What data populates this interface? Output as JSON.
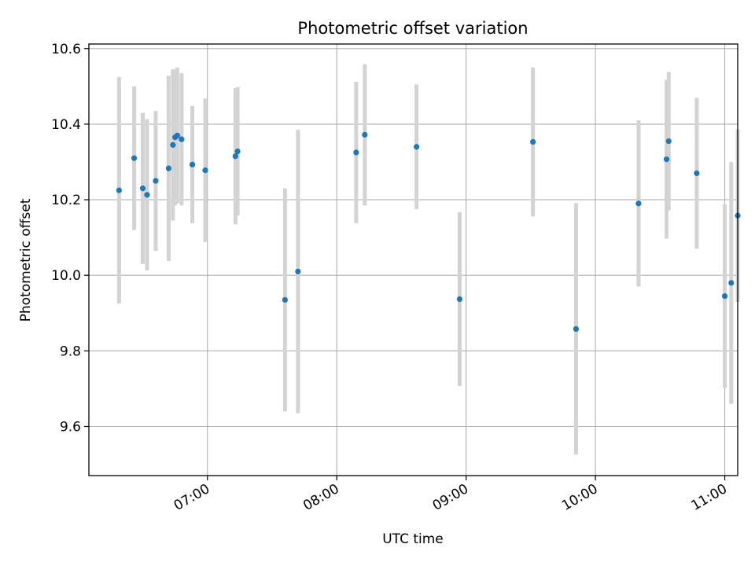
{
  "chart_data": {
    "type": "scatter",
    "title": "Photometric offset variation",
    "xlabel": "UTC time",
    "ylabel": "Photometric offset",
    "xlim": [
      "06:05",
      "11:06"
    ],
    "ylim": [
      9.47,
      10.612
    ],
    "x_ticks": [
      "07:00",
      "08:00",
      "09:00",
      "10:00",
      "11:00"
    ],
    "y_ticks": [
      9.6,
      9.8,
      10.0,
      10.2,
      10.4,
      10.6
    ],
    "grid": true,
    "colors": {
      "points": "#1f77b4",
      "errorbars": "#d3d3d3",
      "grid": "#b0b0b0"
    },
    "points": [
      {
        "x": "06:19",
        "y": 10.225,
        "err": 0.3
      },
      {
        "x": "06:26",
        "y": 10.31,
        "err": 0.19
      },
      {
        "x": "06:30",
        "y": 10.23,
        "err": 0.2
      },
      {
        "x": "06:32",
        "y": 10.213,
        "err": 0.2
      },
      {
        "x": "06:36",
        "y": 10.25,
        "err": 0.185
      },
      {
        "x": "06:42",
        "y": 10.283,
        "err": 0.245
      },
      {
        "x": "06:44",
        "y": 10.345,
        "err": 0.2
      },
      {
        "x": "06:45",
        "y": 10.365,
        "err": 0.18
      },
      {
        "x": "06:46",
        "y": 10.37,
        "err": 0.18
      },
      {
        "x": "06:48",
        "y": 10.36,
        "err": 0.175
      },
      {
        "x": "06:53",
        "y": 10.293,
        "err": 0.155
      },
      {
        "x": "06:59",
        "y": 10.278,
        "err": 0.19
      },
      {
        "x": "07:13",
        "y": 10.315,
        "err": 0.18
      },
      {
        "x": "07:14",
        "y": 10.328,
        "err": 0.17
      },
      {
        "x": "07:36",
        "y": 9.935,
        "err": 0.295
      },
      {
        "x": "07:42",
        "y": 10.01,
        "err": 0.375
      },
      {
        "x": "08:09",
        "y": 10.325,
        "err": 0.187
      },
      {
        "x": "08:13",
        "y": 10.372,
        "err": 0.187
      },
      {
        "x": "08:37",
        "y": 10.34,
        "err": 0.165
      },
      {
        "x": "08:57",
        "y": 9.937,
        "err": 0.23
      },
      {
        "x": "09:31",
        "y": 10.353,
        "err": 0.197
      },
      {
        "x": "09:51",
        "y": 9.858,
        "err": 0.333
      },
      {
        "x": "10:20",
        "y": 10.19,
        "err": 0.22
      },
      {
        "x": "10:33",
        "y": 10.307,
        "err": 0.21
      },
      {
        "x": "10:34",
        "y": 10.355,
        "err": 0.183
      },
      {
        "x": "10:47",
        "y": 10.27,
        "err": 0.2
      },
      {
        "x": "11:00",
        "y": 9.945,
        "err": 0.243
      }
    ],
    "extra_points": [
      {
        "x": "11:04",
        "y": 9.98,
        "err": 0.32
      },
      {
        "x": "11:09",
        "y": 10.158,
        "err": 0.228
      }
    ]
  }
}
